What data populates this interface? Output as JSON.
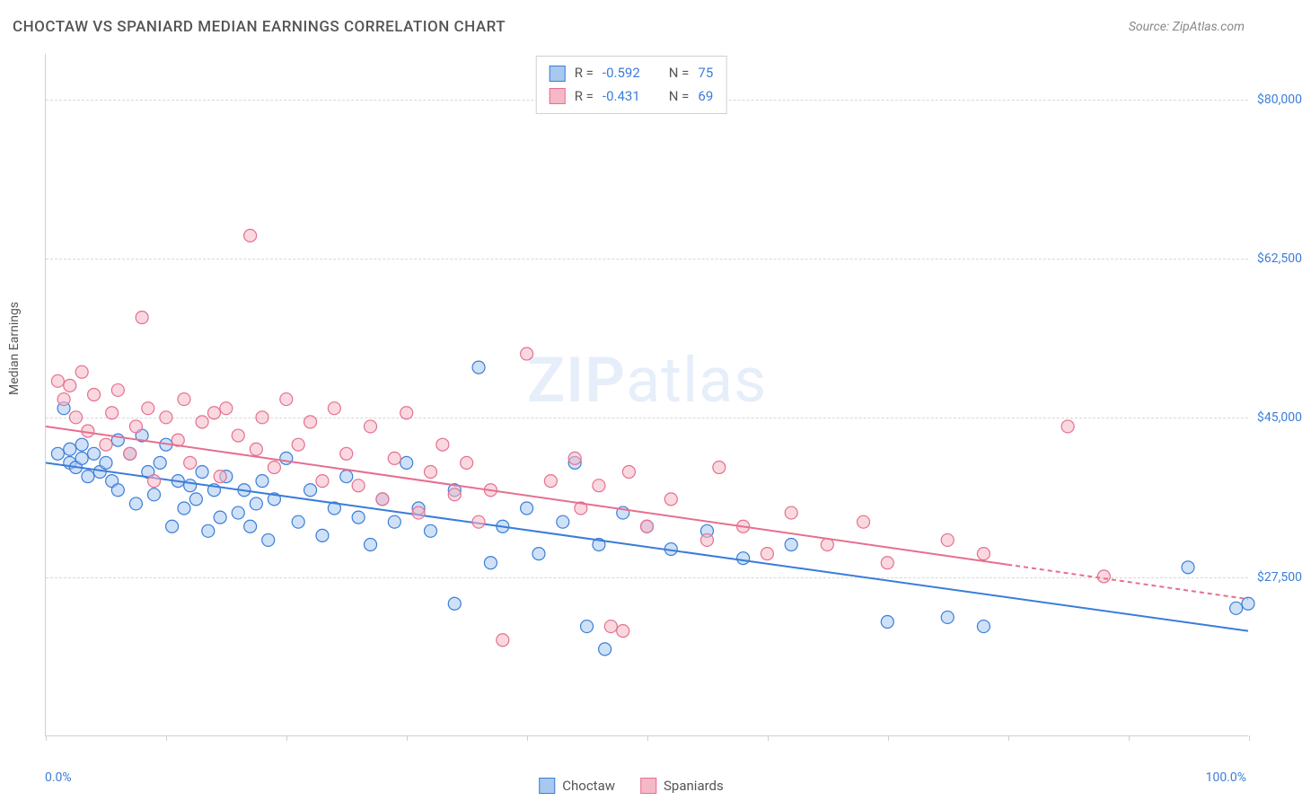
{
  "title": "CHOCTAW VS SPANIARD MEDIAN EARNINGS CORRELATION CHART",
  "source": "Source: ZipAtlas.com",
  "watermark_a": "ZIP",
  "watermark_b": "atlas",
  "y_axis_label": "Median Earnings",
  "x_min_label": "0.0%",
  "x_max_label": "100.0%",
  "chart": {
    "type": "scatter",
    "plot_bg": "#ffffff",
    "grid_color": "#d8d8d8",
    "axis_color": "#d0d0d0",
    "title_color": "#555555",
    "value_color": "#3b7dd8",
    "font_size_title": 17,
    "font_size_label": 14,
    "xlim": [
      0,
      100
    ],
    "ylim": [
      10000,
      85000
    ],
    "y_ticks": [
      {
        "v": 27500,
        "label": "$27,500"
      },
      {
        "v": 45000,
        "label": "$45,000"
      },
      {
        "v": 62500,
        "label": "$62,500"
      },
      {
        "v": 80000,
        "label": "$80,000"
      }
    ],
    "x_tick_positions": [
      0,
      10,
      20,
      30,
      40,
      50,
      60,
      70,
      80,
      90,
      100
    ],
    "marker_radius": 7,
    "marker_stroke_width": 1.2,
    "trend_line_width": 2,
    "series": [
      {
        "name": "Choctaw",
        "fill": "#a8c8f0",
        "stroke": "#3b7dd8",
        "fill_opacity": 0.55,
        "R": "-0.592",
        "N": "75",
        "trend": {
          "x1": 0,
          "y1": 40000,
          "x2": 100,
          "y2": 21500,
          "dash_after_x": null
        },
        "points": [
          [
            1,
            41000
          ],
          [
            1.5,
            46000
          ],
          [
            2,
            41500
          ],
          [
            2,
            40000
          ],
          [
            2.5,
            39500
          ],
          [
            3,
            42000
          ],
          [
            3,
            40500
          ],
          [
            3.5,
            38500
          ],
          [
            4,
            41000
          ],
          [
            4.5,
            39000
          ],
          [
            5,
            40000
          ],
          [
            5.5,
            38000
          ],
          [
            6,
            42500
          ],
          [
            6,
            37000
          ],
          [
            7,
            41000
          ],
          [
            7.5,
            35500
          ],
          [
            8,
            43000
          ],
          [
            8.5,
            39000
          ],
          [
            9,
            36500
          ],
          [
            9.5,
            40000
          ],
          [
            10,
            42000
          ],
          [
            10.5,
            33000
          ],
          [
            11,
            38000
          ],
          [
            11.5,
            35000
          ],
          [
            12,
            37500
          ],
          [
            12.5,
            36000
          ],
          [
            13,
            39000
          ],
          [
            13.5,
            32500
          ],
          [
            14,
            37000
          ],
          [
            14.5,
            34000
          ],
          [
            15,
            38500
          ],
          [
            16,
            34500
          ],
          [
            16.5,
            37000
          ],
          [
            17,
            33000
          ],
          [
            17.5,
            35500
          ],
          [
            18,
            38000
          ],
          [
            18.5,
            31500
          ],
          [
            19,
            36000
          ],
          [
            20,
            40500
          ],
          [
            21,
            33500
          ],
          [
            22,
            37000
          ],
          [
            23,
            32000
          ],
          [
            24,
            35000
          ],
          [
            25,
            38500
          ],
          [
            26,
            34000
          ],
          [
            27,
            31000
          ],
          [
            28,
            36000
          ],
          [
            29,
            33500
          ],
          [
            30,
            40000
          ],
          [
            31,
            35000
          ],
          [
            32,
            32500
          ],
          [
            34,
            37000
          ],
          [
            34,
            24500
          ],
          [
            36,
            50500
          ],
          [
            37,
            29000
          ],
          [
            38,
            33000
          ],
          [
            40,
            35000
          ],
          [
            41,
            30000
          ],
          [
            43,
            33500
          ],
          [
            44,
            40000
          ],
          [
            45,
            22000
          ],
          [
            46,
            31000
          ],
          [
            46.5,
            19500
          ],
          [
            48,
            34500
          ],
          [
            50,
            33000
          ],
          [
            52,
            30500
          ],
          [
            55,
            32500
          ],
          [
            58,
            29500
          ],
          [
            62,
            31000
          ],
          [
            70,
            22500
          ],
          [
            75,
            23000
          ],
          [
            78,
            22000
          ],
          [
            95,
            28500
          ],
          [
            99,
            24000
          ],
          [
            100,
            24500
          ]
        ]
      },
      {
        "name": "Spaniards",
        "fill": "#f5b8c7",
        "stroke": "#e66f8f",
        "fill_opacity": 0.55,
        "R": "-0.431",
        "N": "69",
        "trend": {
          "x1": 0,
          "y1": 44000,
          "x2": 100,
          "y2": 25000,
          "dash_after_x": 80
        },
        "points": [
          [
            1,
            49000
          ],
          [
            1.5,
            47000
          ],
          [
            2,
            48500
          ],
          [
            2.5,
            45000
          ],
          [
            3,
            50000
          ],
          [
            3.5,
            43500
          ],
          [
            4,
            47500
          ],
          [
            5,
            42000
          ],
          [
            5.5,
            45500
          ],
          [
            6,
            48000
          ],
          [
            7,
            41000
          ],
          [
            7.5,
            44000
          ],
          [
            8,
            56000
          ],
          [
            8.5,
            46000
          ],
          [
            9,
            38000
          ],
          [
            10,
            45000
          ],
          [
            11,
            42500
          ],
          [
            11.5,
            47000
          ],
          [
            12,
            40000
          ],
          [
            13,
            44500
          ],
          [
            14,
            45500
          ],
          [
            14.5,
            38500
          ],
          [
            15,
            46000
          ],
          [
            16,
            43000
          ],
          [
            17,
            65000
          ],
          [
            17.5,
            41500
          ],
          [
            18,
            45000
          ],
          [
            19,
            39500
          ],
          [
            20,
            47000
          ],
          [
            21,
            42000
          ],
          [
            22,
            44500
          ],
          [
            23,
            38000
          ],
          [
            24,
            46000
          ],
          [
            25,
            41000
          ],
          [
            26,
            37500
          ],
          [
            27,
            44000
          ],
          [
            28,
            36000
          ],
          [
            29,
            40500
          ],
          [
            30,
            45500
          ],
          [
            31,
            34500
          ],
          [
            32,
            39000
          ],
          [
            33,
            42000
          ],
          [
            34,
            36500
          ],
          [
            35,
            40000
          ],
          [
            36,
            33500
          ],
          [
            37,
            37000
          ],
          [
            38,
            20500
          ],
          [
            40,
            52000
          ],
          [
            42,
            38000
          ],
          [
            44,
            40500
          ],
          [
            44.5,
            35000
          ],
          [
            46,
            37500
          ],
          [
            47,
            22000
          ],
          [
            48,
            21500
          ],
          [
            48.5,
            39000
          ],
          [
            50,
            33000
          ],
          [
            52,
            36000
          ],
          [
            55,
            31500
          ],
          [
            56,
            39500
          ],
          [
            58,
            33000
          ],
          [
            60,
            30000
          ],
          [
            62,
            34500
          ],
          [
            65,
            31000
          ],
          [
            68,
            33500
          ],
          [
            70,
            29000
          ],
          [
            75,
            31500
          ],
          [
            78,
            30000
          ],
          [
            85,
            44000
          ],
          [
            88,
            27500
          ]
        ]
      }
    ],
    "legend_top": [
      {
        "swatch_fill": "#a8c8f0",
        "swatch_stroke": "#3b7dd8",
        "R_label": "R = ",
        "R": "-0.592",
        "N_label": "N = ",
        "N": "75"
      },
      {
        "swatch_fill": "#f5b8c7",
        "swatch_stroke": "#e66f8f",
        "R_label": "R = ",
        "R": "-0.431",
        "N_label": "N = ",
        "N": "69"
      }
    ],
    "legend_bottom": [
      {
        "swatch_fill": "#a8c8f0",
        "swatch_stroke": "#3b7dd8",
        "label": "Choctaw"
      },
      {
        "swatch_fill": "#f5b8c7",
        "swatch_stroke": "#e66f8f",
        "label": "Spaniards"
      }
    ]
  }
}
